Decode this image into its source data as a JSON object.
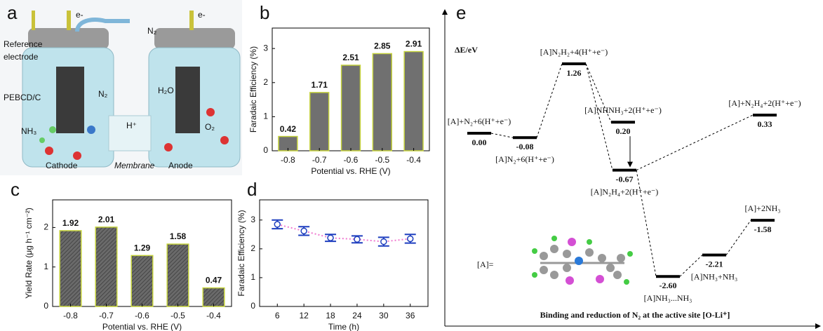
{
  "panel_a": {
    "label": "a",
    "electron_left": "e-",
    "electron_right": "e-",
    "gas_in": "N₂",
    "reference_lines": [
      "Reference",
      "electrode"
    ],
    "catalyst": "PEBCD/C",
    "n2_cathode": "N₂",
    "product": "NH₃",
    "water": "H₂O",
    "oxygen": "O₂",
    "proton": "H⁺",
    "cathode": "Cathode",
    "membrane": "Membrane",
    "anode": "Anode"
  },
  "chart_data": [
    {
      "type": "bar",
      "label": "b",
      "categories": [
        "-0.8",
        "-0.7",
        "-0.6",
        "-0.5",
        "-0.4"
      ],
      "values": [
        0.42,
        1.71,
        2.51,
        2.85,
        2.91
      ],
      "color": "#707070",
      "edge_color": "#c5d23c",
      "hatch": false,
      "xlabel": "Potential vs. RHE (V)",
      "ylabel": "Faradaic Efficiency (%)",
      "ylim": [
        0,
        3.6
      ],
      "yticks": [
        0,
        1,
        2,
        3
      ]
    },
    {
      "type": "bar",
      "label": "c",
      "categories": [
        "-0.8",
        "-0.7",
        "-0.6",
        "-0.5",
        "-0.4"
      ],
      "values": [
        1.92,
        2.01,
        1.29,
        1.58,
        0.47
      ],
      "color": "#707070",
      "edge_color": "#c5d23c",
      "hatch": true,
      "xlabel": "Potential vs. RHE (V)",
      "ylabel": "Yield Rate (μg h⁻¹ cm⁻²)",
      "ylim": [
        0,
        2.7
      ],
      "yticks": [
        0,
        1,
        2
      ]
    },
    {
      "type": "scatter",
      "label": "d",
      "x": [
        6,
        12,
        18,
        24,
        30,
        36
      ],
      "values": [
        2.85,
        2.62,
        2.38,
        2.33,
        2.25,
        2.35
      ],
      "errors": [
        0.15,
        0.15,
        0.12,
        0.12,
        0.15,
        0.15
      ],
      "color": "#1f3fbf",
      "line_color": "#f07ad0",
      "xlabel": "Time (h)",
      "ylabel": "Faradaic Efficiency (%)",
      "xlim": [
        2,
        40
      ],
      "xticks": [
        6,
        12,
        18,
        24,
        30,
        36
      ],
      "ylim": [
        0,
        3.7
      ],
      "yticks": [
        0,
        1,
        2,
        3
      ]
    },
    {
      "type": "energy-diagram",
      "label": "e",
      "ylabel": "ΔE/eV",
      "categories": [
        "[A]+N₂+6(H⁺+e⁻)",
        "[A]N₂+6(H⁺+e⁻)",
        "[A]N₂H₂+4(H⁺+e⁻)",
        "[A]NHNH₃+2(H⁺+e⁻)",
        "[A]N₂H₄+2(H⁺+e⁻)",
        "[A]+N₂H₄+2(H⁺+e⁻)",
        "[A]NH₃...NH₃",
        "[A]NH₃+NH₃",
        "[A]+2NH₃"
      ],
      "values": [
        0,
        -0.08,
        1.26,
        0.2,
        -0.67,
        0.33,
        -2.6,
        -2.21,
        -1.58
      ],
      "value_labels": [
        "0.00",
        "-0.08",
        "1.26",
        "0.20",
        "-0.67",
        "0.33",
        "-2.60",
        "-2.21",
        "-1.58"
      ],
      "ylim": [
        -3.5,
        2.1
      ],
      "color": "#000000",
      "substituent": "[A]=",
      "caption": "Binding and reduction of N₂ at the active site [O-Li⁺]"
    }
  ]
}
